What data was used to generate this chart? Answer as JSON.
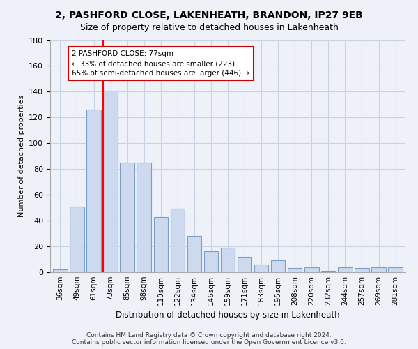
{
  "title": "2, PASHFORD CLOSE, LAKENHEATH, BRANDON, IP27 9EB",
  "subtitle": "Size of property relative to detached houses in Lakenheath",
  "xlabel": "Distribution of detached houses by size in Lakenheath",
  "ylabel": "Number of detached properties",
  "bar_labels": [
    "36sqm",
    "49sqm",
    "61sqm",
    "73sqm",
    "85sqm",
    "98sqm",
    "110sqm",
    "122sqm",
    "134sqm",
    "146sqm",
    "159sqm",
    "171sqm",
    "183sqm",
    "195sqm",
    "208sqm",
    "220sqm",
    "232sqm",
    "244sqm",
    "257sqm",
    "269sqm",
    "281sqm"
  ],
  "bar_values": [
    2,
    51,
    126,
    141,
    85,
    85,
    43,
    49,
    28,
    16,
    19,
    12,
    6,
    9,
    3,
    4,
    1,
    4,
    3,
    4,
    4
  ],
  "bar_color": "#ccd9ee",
  "bar_edge_color": "#7aa0c8",
  "red_line_bar_index": 3,
  "ylim": [
    0,
    180
  ],
  "yticks": [
    0,
    20,
    40,
    60,
    80,
    100,
    120,
    140,
    160,
    180
  ],
  "annotation_title": "2 PASHFORD CLOSE: 77sqm",
  "annotation_line1": "← 33% of detached houses are smaller (223)",
  "annotation_line2": "65% of semi-detached houses are larger (446) →",
  "annotation_box_facecolor": "#ffffff",
  "annotation_box_edgecolor": "#cc0000",
  "footer1": "Contains HM Land Registry data © Crown copyright and database right 2024.",
  "footer2": "Contains public sector information licensed under the Open Government Licence v3.0.",
  "grid_color": "#c8d4e4",
  "background_color": "#eef2f8",
  "title_fontsize": 10,
  "subtitle_fontsize": 9
}
